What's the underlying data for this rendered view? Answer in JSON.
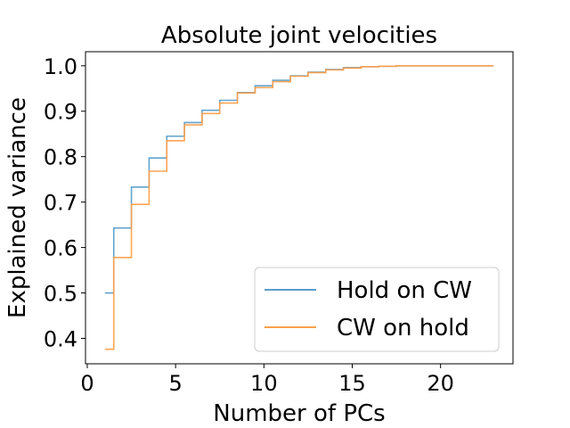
{
  "chart_data": {
    "type": "line",
    "step": "mid",
    "title": "Absolute joint velocities",
    "xlabel": "Number of PCs",
    "ylabel": "Explained variance",
    "xlim": [
      -0.1,
      24.1
    ],
    "ylim": [
      0.344,
      1.031
    ],
    "xticks": [
      0,
      5,
      10,
      15,
      20
    ],
    "yticks": [
      0.4,
      0.5,
      0.6,
      0.7,
      0.8,
      0.9,
      1.0
    ],
    "ytick_labels": [
      "0.4",
      "0.5",
      "0.6",
      "0.7",
      "0.8",
      "0.9",
      "1.0"
    ],
    "grid": false,
    "legend_position": "lower right",
    "x": [
      1,
      2,
      3,
      4,
      5,
      6,
      7,
      8,
      9,
      10,
      11,
      12,
      13,
      14,
      15,
      16,
      17,
      18,
      19,
      20,
      21,
      22,
      23
    ],
    "series": [
      {
        "name": "Hold on CW",
        "color": "#5b9ec9",
        "values": [
          0.5,
          0.643,
          0.733,
          0.797,
          0.845,
          0.875,
          0.902,
          0.924,
          0.941,
          0.956,
          0.968,
          0.978,
          0.986,
          0.992,
          0.996,
          0.998,
          0.999,
          1.0,
          1.0,
          1.0,
          1.0,
          1.0,
          1.0
        ]
      },
      {
        "name": "CW on hold",
        "color": "#ffa04a",
        "values": [
          0.376,
          0.578,
          0.695,
          0.768,
          0.835,
          0.87,
          0.895,
          0.918,
          0.94,
          0.952,
          0.965,
          0.977,
          0.985,
          0.991,
          0.995,
          0.998,
          0.999,
          1.0,
          1.0,
          1.0,
          1.0,
          1.0,
          1.0
        ]
      }
    ]
  }
}
